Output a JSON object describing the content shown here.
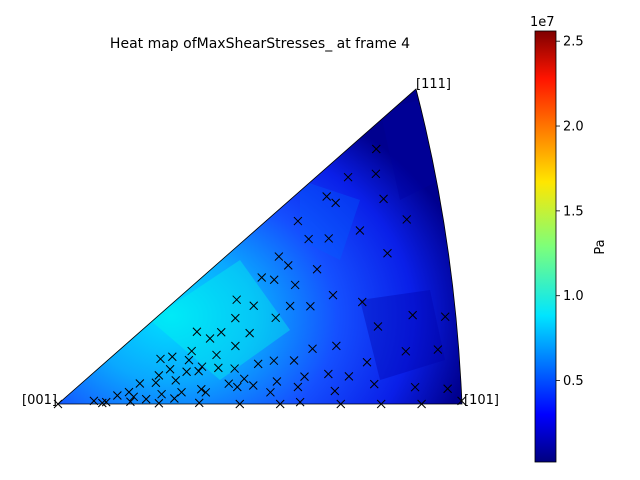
{
  "chart_data": {
    "type": "heatmap",
    "title": "Heat map ofMaxShearStresses_ at frame 4",
    "corner_labels": {
      "origin": "[001]",
      "right": "[101]",
      "top": "[111]"
    },
    "colorbar": {
      "label": "Pa",
      "offset_text": "1e7",
      "range": [
        0.02,
        2.56
      ],
      "ticks": [
        0.5,
        1.0,
        1.5,
        2.0,
        2.5
      ],
      "tick_labels": [
        "0.5",
        "1.0",
        "1.5",
        "2.0",
        "2.5"
      ],
      "colormap": "jet"
    },
    "points_note_values_in_fig_fraction": false,
    "markers": {
      "symbol": "x",
      "color": "#000000",
      "points": [
        [
          0.0,
          0.0
        ],
        [
          0.11,
          0.03
        ],
        [
          0.25,
          0.01
        ],
        [
          0.35,
          0.01
        ],
        [
          0.45,
          0.0
        ],
        [
          0.55,
          0.0
        ],
        [
          0.6,
          0.01
        ],
        [
          0.7,
          0.0
        ],
        [
          0.8,
          0.0
        ],
        [
          0.9,
          0.0
        ],
        [
          1.0,
          0.01
        ],
        [
          0.97,
          0.05
        ],
        [
          0.89,
          0.06
        ],
        [
          0.79,
          0.08
        ],
        [
          0.69,
          0.06
        ],
        [
          0.6,
          0.09
        ],
        [
          0.53,
          0.07
        ],
        [
          0.49,
          0.12
        ],
        [
          0.45,
          0.12
        ],
        [
          0.37,
          0.1
        ],
        [
          0.29,
          0.06
        ],
        [
          0.22,
          0.07
        ],
        [
          0.18,
          0.04
        ],
        [
          0.12,
          0.05
        ],
        [
          0.09,
          0.11
        ],
        [
          0.19,
          0.12
        ],
        [
          0.26,
          0.12
        ],
        [
          0.31,
          0.12
        ],
        [
          0.36,
          0.13
        ],
        [
          0.43,
          0.15
        ],
        [
          0.47,
          0.17
        ],
        [
          0.55,
          0.13
        ],
        [
          0.62,
          0.14
        ],
        [
          0.68,
          0.14
        ],
        [
          0.73,
          0.12
        ],
        [
          0.78,
          0.17
        ],
        [
          0.88,
          0.19
        ],
        [
          0.96,
          0.18
        ],
        [
          0.99,
          0.28
        ],
        [
          0.91,
          0.31
        ],
        [
          0.82,
          0.3
        ],
        [
          0.71,
          0.26
        ],
        [
          0.65,
          0.27
        ],
        [
          0.6,
          0.23
        ],
        [
          0.55,
          0.25
        ],
        [
          0.51,
          0.25
        ],
        [
          0.45,
          0.25
        ],
        [
          0.41,
          0.28
        ],
        [
          0.36,
          0.29
        ],
        [
          0.3,
          0.25
        ],
        [
          0.25,
          0.27
        ],
        [
          0.18,
          0.21
        ],
        [
          0.15,
          0.18
        ],
        [
          0.21,
          0.31
        ],
        [
          0.26,
          0.35
        ],
        [
          0.29,
          0.38
        ],
        [
          0.33,
          0.31
        ],
        [
          0.37,
          0.32
        ],
        [
          0.41,
          0.38
        ],
        [
          0.46,
          0.4
        ],
        [
          0.5,
          0.45
        ],
        [
          0.57,
          0.48
        ],
        [
          0.61,
          0.51
        ],
        [
          0.66,
          0.47
        ],
        [
          0.72,
          0.48
        ],
        [
          0.79,
          0.41
        ],
        [
          0.87,
          0.55
        ],
        [
          0.93,
          0.63
        ],
        [
          0.88,
          0.74
        ],
        [
          0.81,
          0.68
        ],
        [
          0.73,
          0.72
        ],
        [
          0.69,
          0.62
        ],
        [
          0.63,
          0.6
        ],
        [
          0.58,
          0.68
        ],
        [
          0.52,
          0.6
        ],
        [
          0.47,
          0.58
        ],
        [
          0.43,
          0.53
        ],
        [
          0.4,
          0.52
        ],
        [
          0.35,
          0.48
        ],
        [
          0.34,
          0.41
        ],
        [
          0.3,
          0.5
        ],
        [
          0.27,
          0.53
        ],
        [
          0.37,
          0.62
        ],
        [
          0.48,
          0.69
        ],
        [
          0.55,
          0.73
        ],
        [
          0.6,
          0.78
        ],
        [
          0.66,
          0.88
        ],
        [
          0.74,
          0.89
        ],
        [
          0.8,
          0.9
        ],
        [
          0.88,
          0.92
        ],
        [
          0.87,
          0.84
        ],
        [
          0.76,
          0.84
        ],
        [
          0.68,
          0.77
        ],
        [
          0.62,
          0.71
        ]
      ]
    }
  }
}
